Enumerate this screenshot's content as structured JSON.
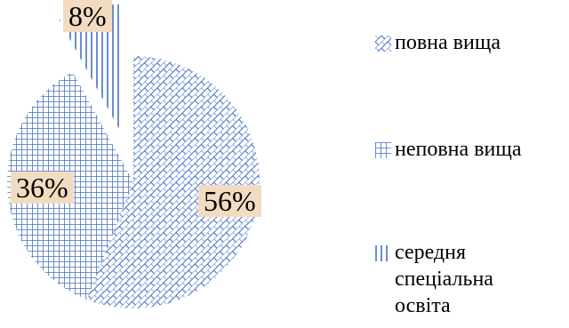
{
  "chart_data": {
    "type": "pie",
    "categories": [
      "повна вища",
      "неповна вища",
      "середня спеціальна освіта"
    ],
    "values": [
      56,
      36,
      8
    ],
    "data_labels": [
      "56%",
      "36%",
      "8%"
    ],
    "legend": {
      "position": "right",
      "entries": [
        "повна вища",
        "неповна вища",
        "середня\nспеціальна\nосвіта"
      ]
    },
    "colors": {
      "pattern_stroke": "#4472c4",
      "label_fill": "#f2dcc1"
    },
    "patterns": [
      "diagonal-brick",
      "grid",
      "vertical-lines"
    ]
  }
}
